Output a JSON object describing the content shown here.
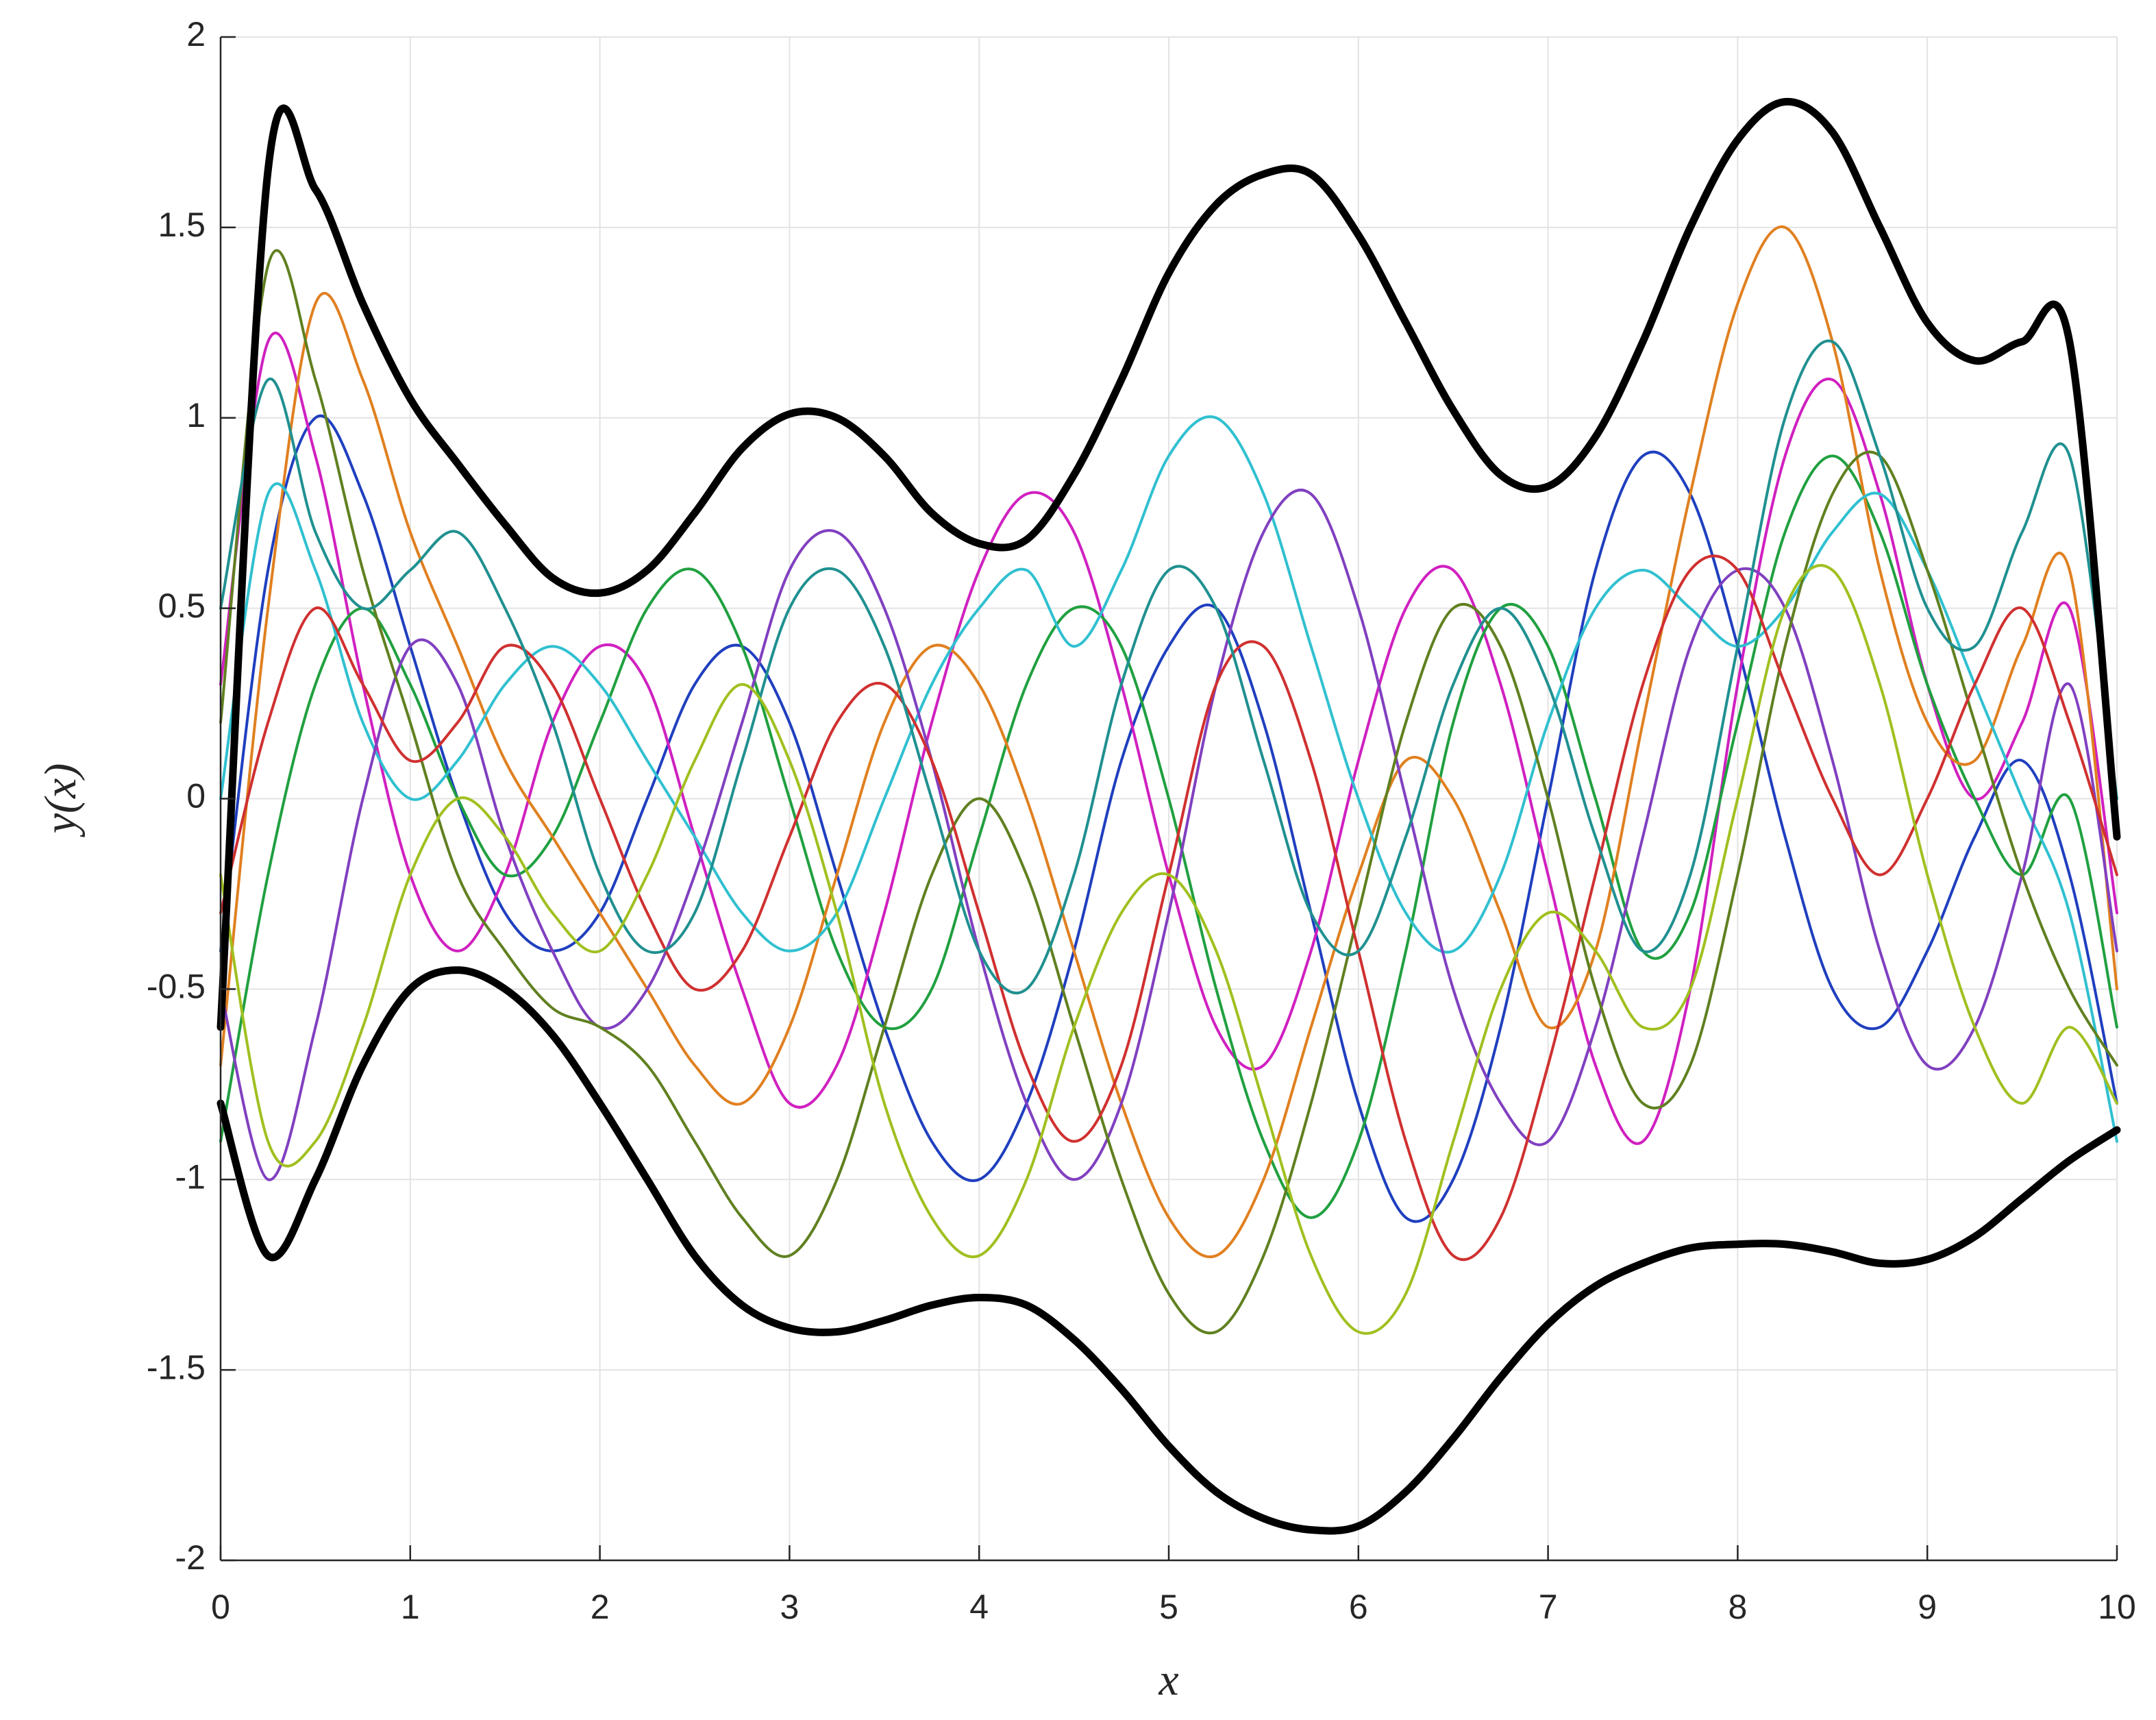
{
  "chart_data": {
    "type": "line",
    "xlabel": "x",
    "ylabel": "y(x)",
    "x": [
      0,
      0.25,
      0.5,
      0.75,
      1,
      1.25,
      1.5,
      1.75,
      2,
      2.25,
      2.5,
      2.75,
      3,
      3.25,
      3.5,
      3.75,
      4,
      4.25,
      4.5,
      4.75,
      5,
      5.25,
      5.5,
      5.75,
      6,
      6.25,
      6.5,
      6.75,
      7,
      7.25,
      7.5,
      7.75,
      8,
      8.25,
      8.5,
      8.75,
      9,
      9.25,
      9.5,
      9.75,
      10
    ],
    "xlim": [
      0,
      10
    ],
    "xticks": [
      0,
      1,
      2,
      3,
      4,
      5,
      6,
      7,
      8,
      9,
      10
    ],
    "ylim": [
      -2,
      2
    ],
    "yticks": [
      -2,
      -1.5,
      -1,
      -0.5,
      0,
      0.5,
      1,
      1.5,
      2
    ],
    "grid": true,
    "series": [
      {
        "color": "#1f3fbf",
        "values": [
          -0.4,
          0.6,
          1.0,
          0.8,
          0.4,
          0.0,
          -0.3,
          -0.4,
          -0.3,
          0.0,
          0.3,
          0.4,
          0.2,
          -0.2,
          -0.6,
          -0.9,
          -1.0,
          -0.8,
          -0.4,
          0.1,
          0.4,
          0.5,
          0.2,
          -0.3,
          -0.8,
          -1.1,
          -1.0,
          -0.6,
          0.0,
          0.6,
          0.9,
          0.8,
          0.4,
          -0.1,
          -0.5,
          -0.6,
          -0.4,
          -0.1,
          0.1,
          -0.2,
          -0.8
        ]
      },
      {
        "color": "#d020c0",
        "values": [
          0.3,
          1.2,
          0.9,
          0.3,
          -0.2,
          -0.4,
          -0.2,
          0.2,
          0.4,
          0.3,
          -0.1,
          -0.5,
          -0.8,
          -0.7,
          -0.3,
          0.2,
          0.6,
          0.8,
          0.7,
          0.3,
          -0.2,
          -0.6,
          -0.7,
          -0.4,
          0.1,
          0.5,
          0.6,
          0.3,
          -0.2,
          -0.7,
          -0.9,
          -0.5,
          0.3,
          0.9,
          1.1,
          0.8,
          0.3,
          0.0,
          0.2,
          0.5,
          -0.3
        ]
      },
      {
        "color": "#20a040",
        "values": [
          -0.9,
          -0.2,
          0.3,
          0.5,
          0.3,
          0.0,
          -0.2,
          -0.1,
          0.2,
          0.5,
          0.6,
          0.4,
          0.0,
          -0.4,
          -0.6,
          -0.5,
          -0.1,
          0.3,
          0.5,
          0.4,
          0.0,
          -0.5,
          -0.9,
          -1.1,
          -0.9,
          -0.4,
          0.2,
          0.5,
          0.4,
          0.0,
          -0.4,
          -0.3,
          0.2,
          0.7,
          0.9,
          0.7,
          0.3,
          0.0,
          -0.2,
          0.0,
          -0.6
        ]
      },
      {
        "color": "#e08020",
        "values": [
          -0.7,
          0.5,
          1.3,
          1.1,
          0.7,
          0.4,
          0.1,
          -0.1,
          -0.3,
          -0.5,
          -0.7,
          -0.8,
          -0.6,
          -0.2,
          0.2,
          0.4,
          0.3,
          0.0,
          -0.4,
          -0.8,
          -1.1,
          -1.2,
          -1.0,
          -0.6,
          -0.2,
          0.1,
          0.0,
          -0.3,
          -0.6,
          -0.4,
          0.2,
          0.8,
          1.3,
          1.5,
          1.2,
          0.6,
          0.2,
          0.1,
          0.4,
          0.6,
          -0.5
        ]
      },
      {
        "color": "#30c0d0",
        "values": [
          0.0,
          0.8,
          0.6,
          0.2,
          0.0,
          0.1,
          0.3,
          0.4,
          0.3,
          0.1,
          -0.1,
          -0.3,
          -0.4,
          -0.3,
          0.0,
          0.3,
          0.5,
          0.6,
          0.4,
          0.6,
          0.9,
          1.0,
          0.8,
          0.4,
          0.0,
          -0.3,
          -0.4,
          -0.2,
          0.2,
          0.5,
          0.6,
          0.5,
          0.4,
          0.5,
          0.7,
          0.8,
          0.6,
          0.3,
          0.0,
          -0.3,
          -0.9
        ]
      },
      {
        "color": "#8040c0",
        "values": [
          -0.5,
          -1.0,
          -0.6,
          0.0,
          0.4,
          0.3,
          -0.1,
          -0.4,
          -0.6,
          -0.5,
          -0.2,
          0.2,
          0.6,
          0.7,
          0.5,
          0.1,
          -0.4,
          -0.8,
          -1.0,
          -0.8,
          -0.3,
          0.3,
          0.7,
          0.8,
          0.5,
          0.0,
          -0.5,
          -0.8,
          -0.9,
          -0.6,
          -0.1,
          0.4,
          0.6,
          0.5,
          0.1,
          -0.4,
          -0.7,
          -0.6,
          -0.2,
          0.3,
          -0.4
        ]
      },
      {
        "color": "#608020",
        "values": [
          0.2,
          1.4,
          1.1,
          0.6,
          0.2,
          -0.2,
          -0.4,
          -0.55,
          -0.6,
          -0.7,
          -0.9,
          -1.1,
          -1.2,
          -1.0,
          -0.6,
          -0.2,
          0.0,
          -0.2,
          -0.6,
          -1.0,
          -1.3,
          -1.4,
          -1.2,
          -0.8,
          -0.3,
          0.2,
          0.5,
          0.4,
          0.0,
          -0.5,
          -0.8,
          -0.7,
          -0.2,
          0.4,
          0.8,
          0.9,
          0.6,
          0.2,
          -0.2,
          -0.5,
          -0.7
        ]
      },
      {
        "color": "#d03030",
        "values": [
          -0.3,
          0.2,
          0.5,
          0.3,
          0.1,
          0.2,
          0.4,
          0.3,
          0.0,
          -0.3,
          -0.5,
          -0.4,
          -0.1,
          0.2,
          0.3,
          0.1,
          -0.3,
          -0.7,
          -0.9,
          -0.7,
          -0.2,
          0.3,
          0.4,
          0.1,
          -0.4,
          -0.9,
          -1.2,
          -1.1,
          -0.7,
          -0.2,
          0.3,
          0.6,
          0.6,
          0.3,
          0.0,
          -0.2,
          0.0,
          0.3,
          0.5,
          0.2,
          -0.2
        ]
      },
      {
        "color": "#209090",
        "values": [
          0.5,
          1.1,
          0.7,
          0.5,
          0.6,
          0.7,
          0.5,
          0.2,
          -0.2,
          -0.4,
          -0.3,
          0.1,
          0.5,
          0.6,
          0.4,
          0.0,
          -0.4,
          -0.5,
          -0.2,
          0.3,
          0.6,
          0.5,
          0.1,
          -0.3,
          -0.4,
          -0.1,
          0.3,
          0.5,
          0.3,
          -0.1,
          -0.4,
          -0.2,
          0.4,
          1.0,
          1.2,
          0.9,
          0.5,
          0.4,
          0.7,
          0.9,
          0.0
        ]
      },
      {
        "color": "#a0c020",
        "values": [
          -0.2,
          -0.9,
          -0.9,
          -0.6,
          -0.2,
          0.0,
          -0.1,
          -0.3,
          -0.4,
          -0.2,
          0.1,
          0.3,
          0.1,
          -0.3,
          -0.8,
          -1.1,
          -1.2,
          -1.0,
          -0.6,
          -0.3,
          -0.2,
          -0.4,
          -0.8,
          -1.2,
          -1.4,
          -1.3,
          -0.9,
          -0.5,
          -0.3,
          -0.4,
          -0.6,
          -0.5,
          0.0,
          0.5,
          0.6,
          0.3,
          -0.2,
          -0.6,
          -0.8,
          -0.6,
          -0.8
        ]
      },
      {
        "color": "#000000",
        "values": [
          -0.6,
          1.65,
          1.6,
          1.3,
          1.05,
          0.88,
          0.72,
          0.58,
          0.54,
          0.6,
          0.75,
          0.92,
          1.01,
          1.0,
          0.9,
          0.75,
          0.67,
          0.68,
          0.85,
          1.1,
          1.38,
          1.56,
          1.64,
          1.64,
          1.48,
          1.25,
          1.02,
          0.85,
          0.82,
          0.95,
          1.2,
          1.5,
          1.73,
          1.83,
          1.75,
          1.5,
          1.25,
          1.15,
          1.2,
          1.2,
          -0.1
        ]
      },
      {
        "color": "#000000",
        "values": [
          -0.8,
          -1.2,
          -1.0,
          -0.7,
          -0.5,
          -0.45,
          -0.5,
          -0.62,
          -0.8,
          -1.0,
          -1.2,
          -1.33,
          -1.39,
          -1.4,
          -1.37,
          -1.33,
          -1.31,
          -1.33,
          -1.42,
          -1.55,
          -1.7,
          -1.82,
          -1.89,
          -1.92,
          -1.91,
          -1.82,
          -1.68,
          -1.52,
          -1.38,
          -1.28,
          -1.22,
          -1.18,
          -1.17,
          -1.17,
          -1.19,
          -1.22,
          -1.21,
          -1.15,
          -1.05,
          -0.95,
          -0.87
        ]
      }
    ]
  }
}
